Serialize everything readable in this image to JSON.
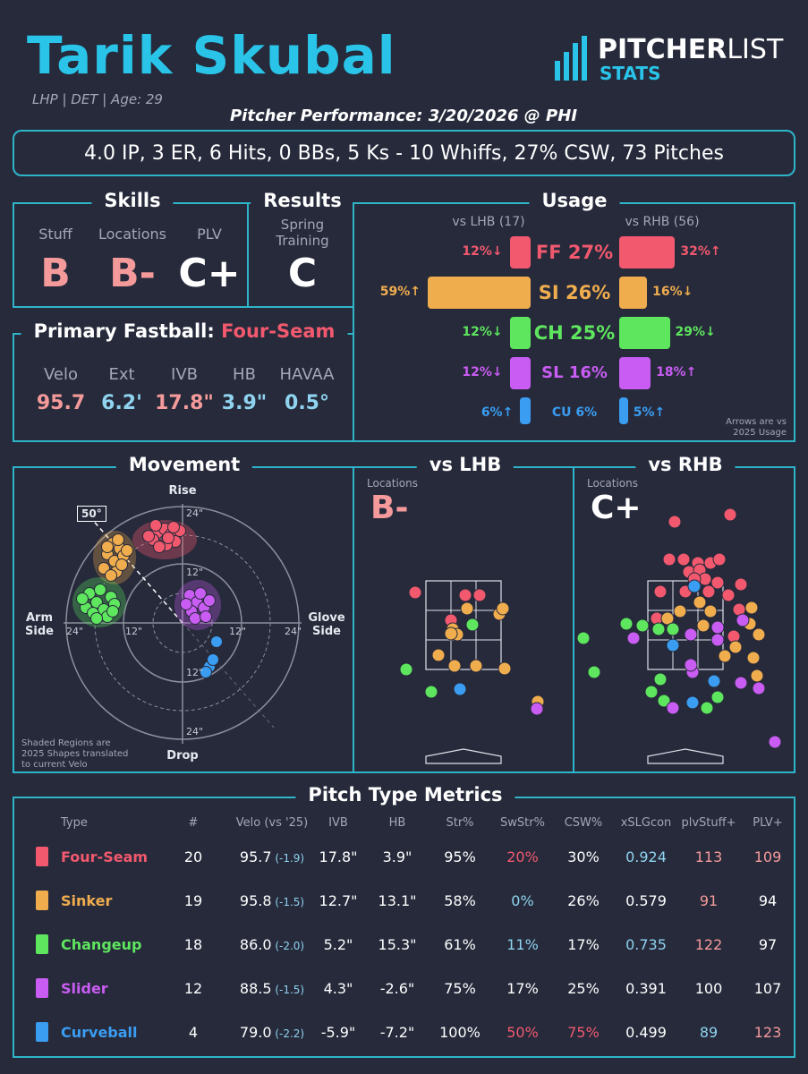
{
  "header": {
    "name": "Tarik Skubal",
    "meta": "LHP | DET | Age: 29",
    "performance_title": "Pitcher Performance: 3/20/2026 @ PHI",
    "summary": "4.0 IP, 3 ER, 6 Hits, 0 BBs, 5 Ks - 10 Whiffs, 27% CSW, 73 Pitches",
    "logo_line1_a": "PITCHER",
    "logo_line1_b": "LIST",
    "logo_line2": "STATS"
  },
  "colors": {
    "four_seam": "#f2596e",
    "sinker": "#f0ad4e",
    "changeup": "#5ee65e",
    "slider": "#c95cf2",
    "curveball": "#3a9df2",
    "accent": "#2fb5c9",
    "good": "#8fd3ef",
    "bad": "#f2596e"
  },
  "skills": {
    "title": "Skills",
    "labels": [
      "Stuff",
      "Locations",
      "PLV"
    ],
    "grades": [
      "B",
      "B-",
      "C+"
    ]
  },
  "results": {
    "title": "Results",
    "label": "Spring Training",
    "grade": "C"
  },
  "fastball": {
    "title": "Primary Fastball:",
    "type": "Four-Seam",
    "labels": [
      "Velo",
      "Ext",
      "IVB",
      "HB",
      "HAVAA"
    ],
    "values": [
      "95.7",
      "6.2'",
      "17.8\"",
      "3.9\"",
      "0.5°"
    ]
  },
  "usage": {
    "title": "Usage",
    "lhb_label": "vs LHB (17)",
    "rhb_label": "vs RHB (56)",
    "note": "Arrows are vs 2025 Usage",
    "rows": [
      {
        "label": "FF 27%",
        "key": "four_seam",
        "lhb": 12,
        "lhb_text": "12%↓",
        "rhb": 32,
        "rhb_text": "32%↑"
      },
      {
        "label": "SI 26%",
        "key": "sinker",
        "lhb": 59,
        "lhb_text": "59%↑",
        "rhb": 16,
        "rhb_text": "16%↓"
      },
      {
        "label": "CH 25%",
        "key": "changeup",
        "lhb": 12,
        "lhb_text": "12%↓",
        "rhb": 29,
        "rhb_text": "29%↓"
      },
      {
        "label": "SL 16%",
        "key": "slider",
        "lhb": 12,
        "lhb_text": "12%↓",
        "rhb": 18,
        "rhb_text": "18%↑"
      },
      {
        "label": "CU 6%",
        "key": "curveball",
        "lhb": 6,
        "lhb_text": "6%↑",
        "rhb": 5,
        "rhb_text": "5%↑"
      }
    ]
  },
  "movement": {
    "title": "Movement",
    "rise": "Rise",
    "drop": "Drop",
    "arm_side": "Arm Side",
    "glove_side": "Glove Side",
    "angle": "50°",
    "ring_labels": [
      "24\"",
      "12\"",
      "12\"",
      "24\"",
      "24\"",
      "12\"",
      "12\"",
      "24\""
    ],
    "note": "Shaded Regions are 2025 Shapes translated to current Velo"
  },
  "vs_lhb": {
    "title": "vs LHB",
    "locations_label": "Locations",
    "grade": "B-"
  },
  "vs_rhb": {
    "title": "vs RHB",
    "locations_label": "Locations",
    "grade": "C+"
  },
  "metrics": {
    "title": "Pitch Type Metrics",
    "headers": [
      "Type",
      "#",
      "Velo (vs '25)",
      "IVB",
      "HB",
      "Str%",
      "SwStr%",
      "CSW%",
      "xSLGcon",
      "plvStuff+",
      "PLV+"
    ],
    "rows": [
      {
        "key": "four_seam",
        "type": "Four-Seam",
        "count": "20",
        "velo": "95.7",
        "velo_diff": "(-1.9)",
        "ivb": "17.8\"",
        "hb": "3.9\"",
        "str": "95%",
        "swstr": "20%",
        "csw": "30%",
        "xslg": "0.924",
        "stuff": "113",
        "plv": "109"
      },
      {
        "key": "sinker",
        "type": "Sinker",
        "count": "19",
        "velo": "95.8",
        "velo_diff": "(-1.5)",
        "ivb": "12.7\"",
        "hb": "13.1\"",
        "str": "58%",
        "swstr": "0%",
        "csw": "26%",
        "xslg": "0.579",
        "stuff": "91",
        "plv": "94"
      },
      {
        "key": "changeup",
        "type": "Changeup",
        "count": "18",
        "velo": "86.0",
        "velo_diff": "(-2.0)",
        "ivb": "5.2\"",
        "hb": "15.3\"",
        "str": "61%",
        "swstr": "11%",
        "csw": "17%",
        "xslg": "0.735",
        "stuff": "122",
        "plv": "97"
      },
      {
        "key": "slider",
        "type": "Slider",
        "count": "12",
        "velo": "88.5",
        "velo_diff": "(-1.5)",
        "ivb": "4.3\"",
        "hb": "-2.6\"",
        "str": "75%",
        "swstr": "17%",
        "csw": "25%",
        "xslg": "0.391",
        "stuff": "100",
        "plv": "107"
      },
      {
        "key": "curveball",
        "type": "Curveball",
        "count": "4",
        "velo": "79.0",
        "velo_diff": "(-2.2)",
        "ivb": "-5.9\"",
        "hb": "-7.2\"",
        "str": "100%",
        "swstr": "50%",
        "csw": "75%",
        "xslg": "0.499",
        "stuff": "89",
        "plv": "123"
      }
    ]
  }
}
